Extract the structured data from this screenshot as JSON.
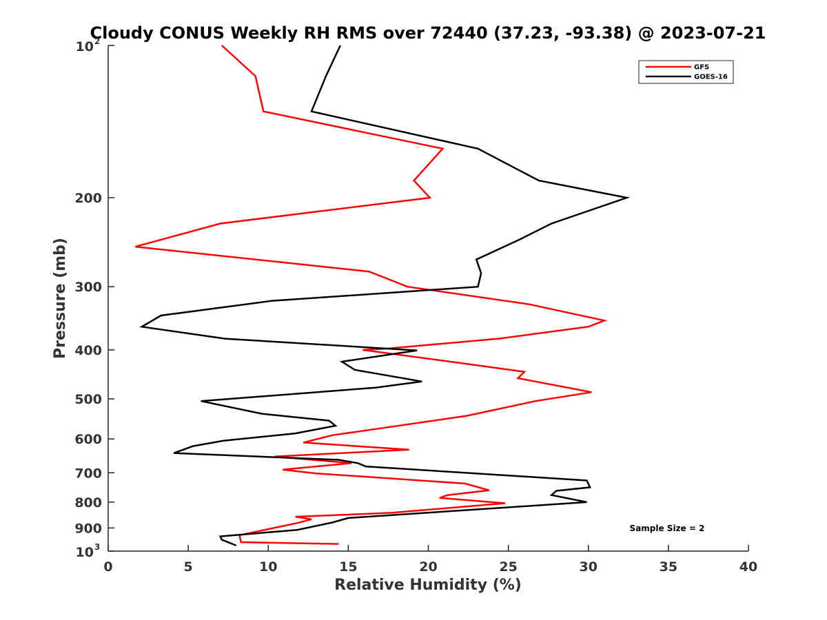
{
  "chart_data": {
    "type": "line",
    "title": "Cloudy CONUS Weekly RH RMS over 72440 (37.23, -93.38) @ 2023-07-21",
    "xlabel": "Relative Humidity (%)",
    "ylabel": "Pressure (mb)",
    "xlim": [
      0,
      40
    ],
    "ylim": [
      100,
      1000
    ],
    "y_scale": "log",
    "y_reversed": true,
    "grid": false,
    "legend_position": "top-right",
    "x_ticks": [
      "0",
      "5",
      "10",
      "15",
      "20",
      "25",
      "30",
      "35",
      "40"
    ],
    "y_ticks": [
      {
        "value": 100,
        "base": "10",
        "exp": "2"
      },
      {
        "value": 200,
        "label": "200"
      },
      {
        "value": 300,
        "label": "300"
      },
      {
        "value": 400,
        "label": "400"
      },
      {
        "value": 500,
        "label": "500"
      },
      {
        "value": 600,
        "label": "600"
      },
      {
        "value": 700,
        "label": "700"
      },
      {
        "value": 800,
        "label": "800"
      },
      {
        "value": 900,
        "label": "900"
      },
      {
        "value": 1000,
        "base": "10",
        "exp": "3"
      }
    ],
    "annotation": "Sample Size = 2",
    "series": [
      {
        "name": "GFS",
        "color": "#ff0000",
        "points": [
          [
            7.1,
            100
          ],
          [
            9.2,
            115
          ],
          [
            9.7,
            135
          ],
          [
            20.9,
            160
          ],
          [
            19.1,
            185
          ],
          [
            20.1,
            200
          ],
          [
            7.0,
            225
          ],
          [
            1.7,
            250
          ],
          [
            16.3,
            280
          ],
          [
            18.7,
            300
          ],
          [
            26.3,
            325
          ],
          [
            31.0,
            350
          ],
          [
            30.0,
            360
          ],
          [
            24.4,
            380
          ],
          [
            17.3,
            398
          ],
          [
            15.9,
            400
          ],
          [
            22.1,
            425
          ],
          [
            26.0,
            442
          ],
          [
            25.6,
            455
          ],
          [
            30.2,
            485
          ],
          [
            26.7,
            505
          ],
          [
            22.4,
            540
          ],
          [
            17.3,
            570
          ],
          [
            14.0,
            590
          ],
          [
            12.2,
            610
          ],
          [
            18.8,
            630
          ],
          [
            10.4,
            650
          ],
          [
            15.2,
            670
          ],
          [
            10.9,
            690
          ],
          [
            13.0,
            702
          ],
          [
            22.3,
            735
          ],
          [
            23.8,
            758
          ],
          [
            21.2,
            775
          ],
          [
            20.7,
            785
          ],
          [
            24.8,
            804
          ],
          [
            17.7,
            840
          ],
          [
            11.7,
            855
          ],
          [
            12.7,
            865
          ],
          [
            11.8,
            880
          ],
          [
            8.2,
            930
          ],
          [
            8.3,
            960
          ],
          [
            14.4,
            968
          ]
        ]
      },
      {
        "name": "GOES-16",
        "color": "#000000",
        "points": [
          [
            14.5,
            100
          ],
          [
            13.6,
            115
          ],
          [
            12.7,
            135
          ],
          [
            23.1,
            160
          ],
          [
            26.9,
            185
          ],
          [
            32.4,
            200
          ],
          [
            27.7,
            225
          ],
          [
            25.7,
            242
          ],
          [
            23.0,
            265
          ],
          [
            23.3,
            282
          ],
          [
            23.1,
            300
          ],
          [
            10.2,
            320
          ],
          [
            3.3,
            342
          ],
          [
            2.1,
            360
          ],
          [
            7.3,
            380
          ],
          [
            19.3,
            401
          ],
          [
            14.6,
            422
          ],
          [
            15.4,
            438
          ],
          [
            19.6,
            462
          ],
          [
            16.7,
            475
          ],
          [
            5.8,
            505
          ],
          [
            9.6,
            535
          ],
          [
            13.8,
            552
          ],
          [
            14.2,
            565
          ],
          [
            11.7,
            585
          ],
          [
            7.2,
            605
          ],
          [
            5.3,
            620
          ],
          [
            4.1,
            640
          ],
          [
            14.4,
            660
          ],
          [
            15.6,
            670
          ],
          [
            16.1,
            680
          ],
          [
            29.9,
            725
          ],
          [
            30.1,
            748
          ],
          [
            28.0,
            760
          ],
          [
            27.7,
            775
          ],
          [
            29.9,
            800
          ],
          [
            15.0,
            860
          ],
          [
            14.0,
            878
          ],
          [
            11.8,
            908
          ],
          [
            7.0,
            935
          ],
          [
            7.1,
            950
          ],
          [
            7.7,
            966
          ],
          [
            8.0,
            975
          ]
        ]
      }
    ]
  }
}
